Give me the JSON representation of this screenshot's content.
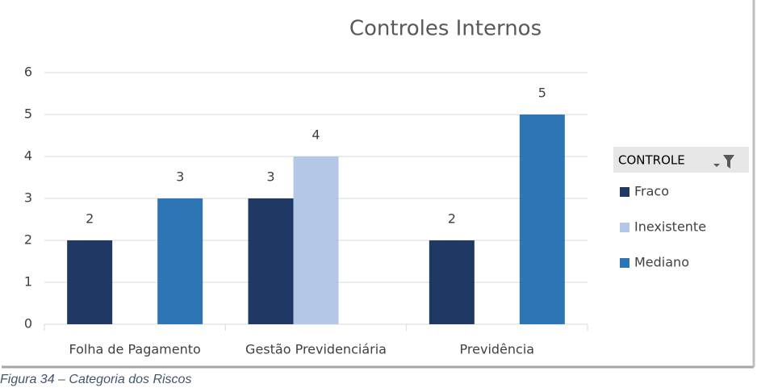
{
  "chart_data": {
    "type": "bar",
    "title": "Controles Internos",
    "categories": [
      "Folha de Pagamento",
      "Gestão Previdenciária",
      "Previdência"
    ],
    "series": [
      {
        "name": "Fraco",
        "color": "#1f3864",
        "values": [
          2,
          3,
          2
        ]
      },
      {
        "name": "Inexistente",
        "color": "#b4c7e7",
        "values": [
          null,
          4,
          null
        ]
      },
      {
        "name": "Mediano",
        "color": "#2e75b6",
        "values": [
          3,
          null,
          5
        ]
      }
    ],
    "ylim": [
      0,
      6
    ],
    "yticks": [
      0,
      1,
      2,
      3,
      4,
      5,
      6
    ],
    "grid": true,
    "legend_title": "CONTROLE",
    "legend": "right",
    "caption": "Figura 34 – Categoria dos Riscos"
  }
}
